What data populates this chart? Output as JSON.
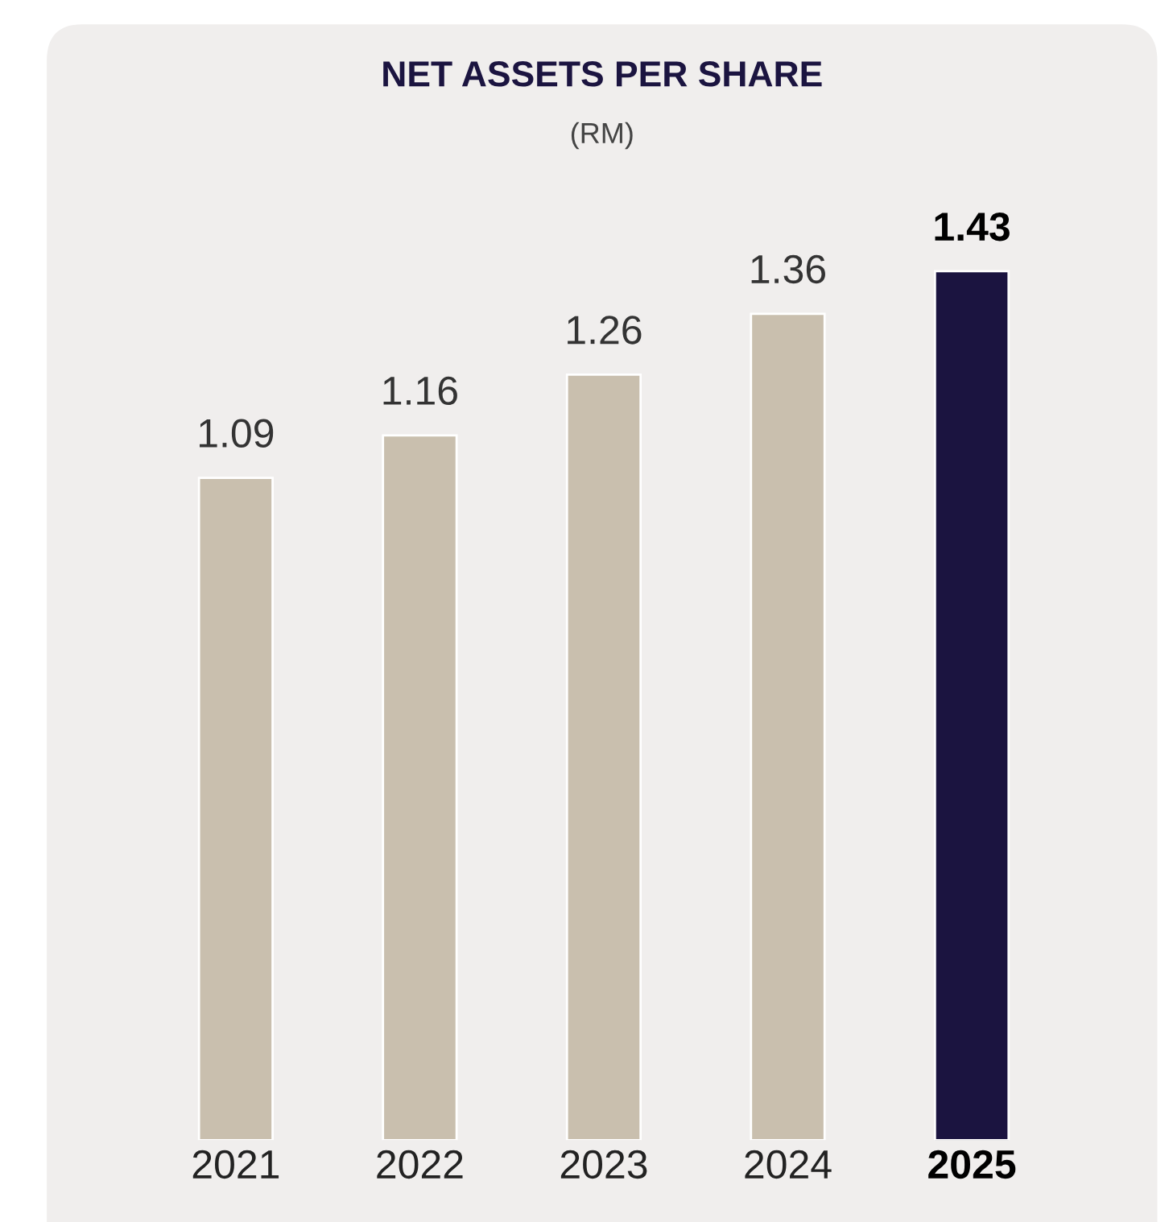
{
  "chart_data": {
    "type": "bar",
    "title": "NET ASSETS PER SHARE",
    "subtitle": "(RM)",
    "categories": [
      "2021",
      "2022",
      "2023",
      "2024",
      "2025"
    ],
    "values": [
      1.09,
      1.16,
      1.26,
      1.36,
      1.43
    ],
    "colors": [
      "#c9bfae",
      "#c9bfae",
      "#c9bfae",
      "#c9bfae",
      "#1b1440"
    ],
    "data_labels": true,
    "grid": false,
    "legend": false
  }
}
